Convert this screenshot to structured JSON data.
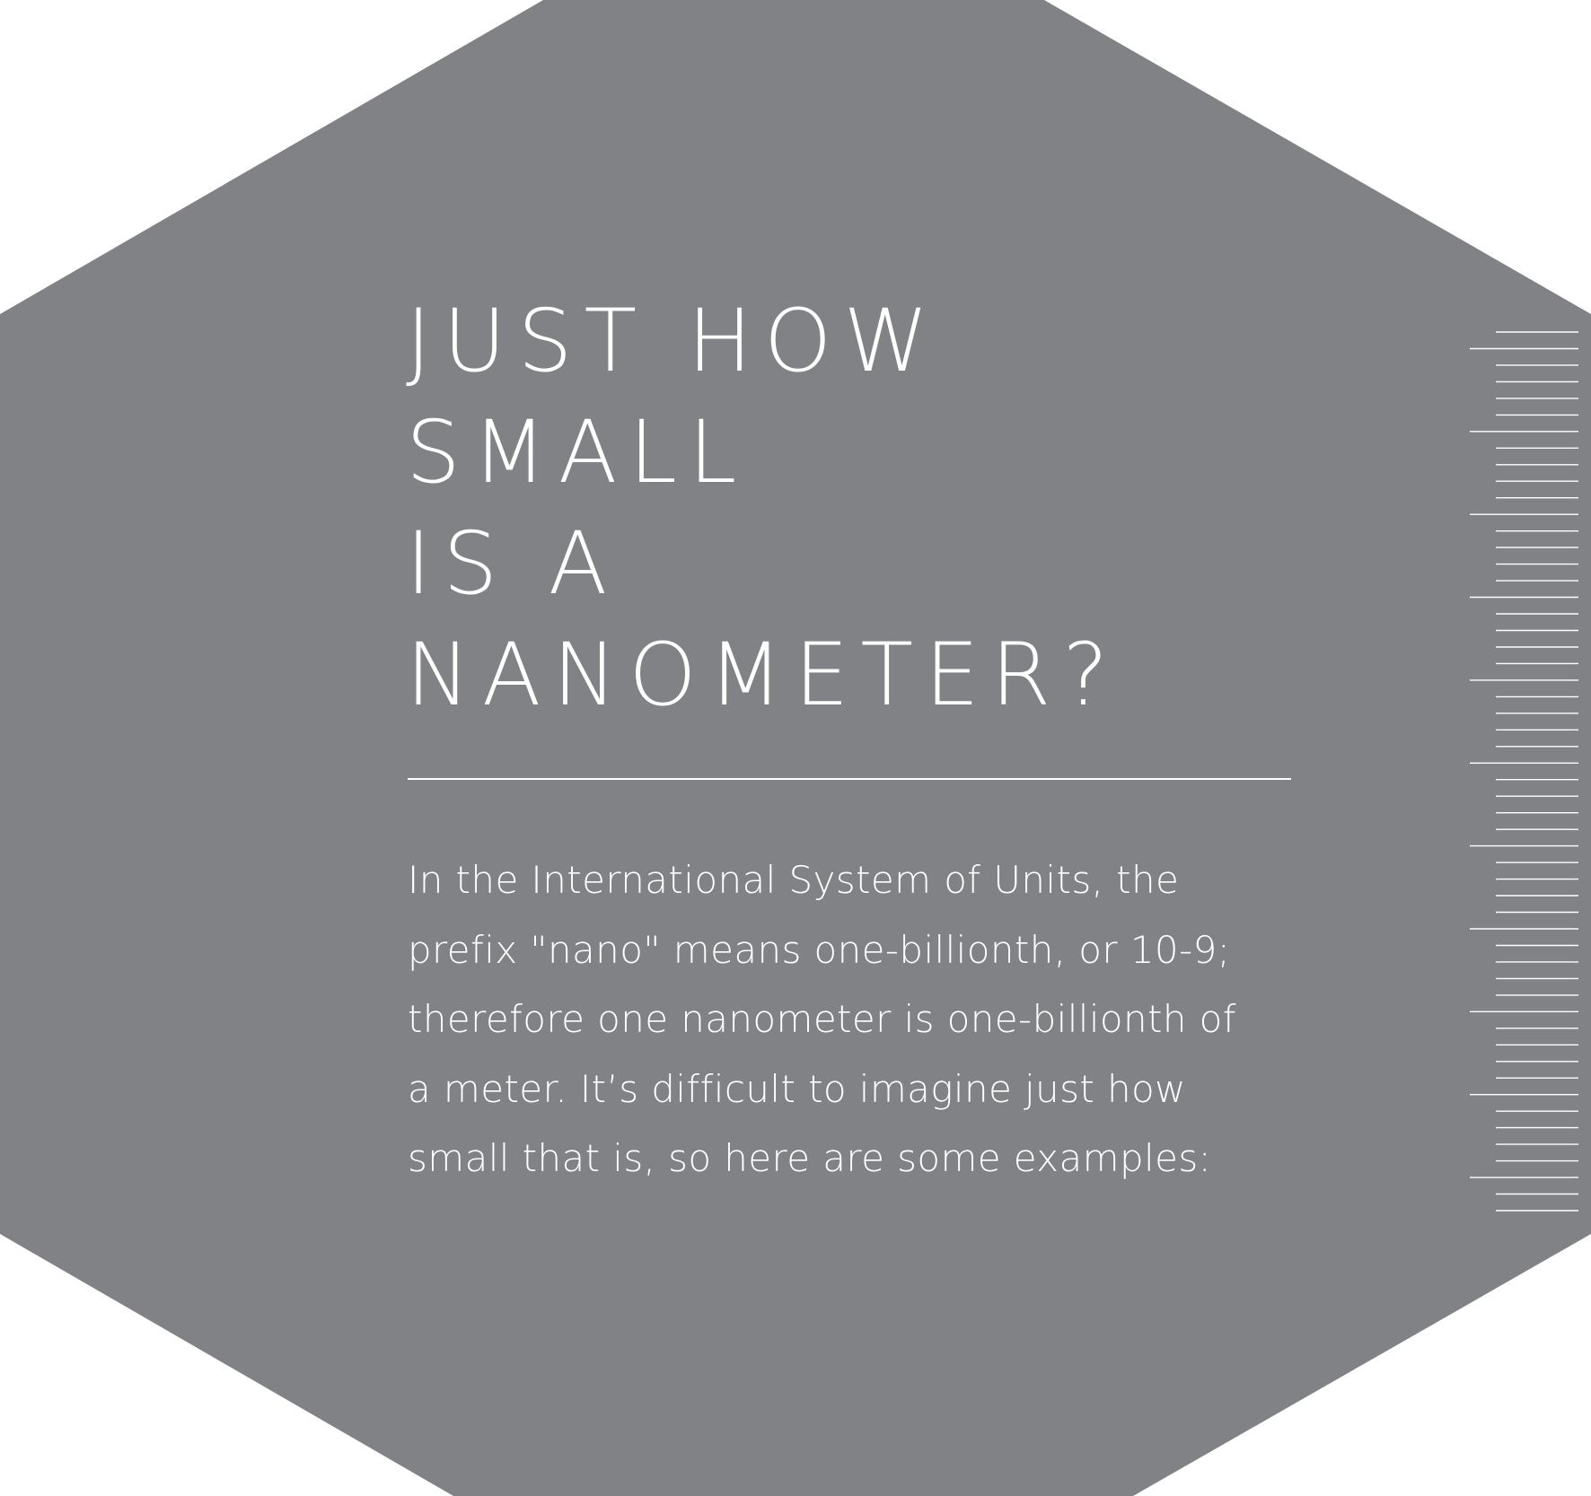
{
  "colors": {
    "panel": "#818285",
    "background": "#ffffff",
    "text": "#ffffff",
    "ruler": "#ffffff"
  },
  "heading": {
    "lines": [
      "JUST HOW",
      "SMALL",
      "IS A",
      "NANOMETER?"
    ]
  },
  "body": {
    "lines": [
      "In the International System of Units, the",
      "prefix \"nano\" means one-billionth, or 10-9;",
      "therefore one nanometer is one-billionth of",
      "a meter. It’s difficult to imagine just how",
      "small that is, so here are some examples:"
    ]
  },
  "ruler": {
    "minor_ticks": 54,
    "major_every": 5
  }
}
